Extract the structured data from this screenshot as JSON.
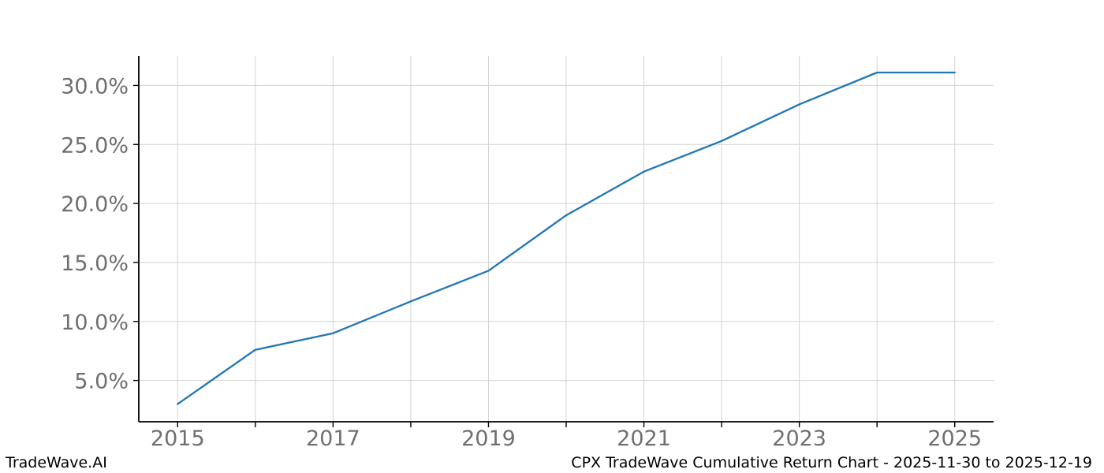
{
  "footer": {
    "left": "TradeWave.AI",
    "right": "CPX TradeWave Cumulative Return Chart - 2025-11-30 to 2025-12-19"
  },
  "chart_data": {
    "type": "line",
    "title": "",
    "xlabel": "",
    "ylabel": "",
    "x": [
      2015,
      2016,
      2017,
      2018,
      2019,
      2020,
      2021,
      2022,
      2023,
      2024,
      2025
    ],
    "series": [
      {
        "name": "CPX cumulative return",
        "values": [
          3.0,
          7.6,
          9.0,
          11.7,
          14.3,
          19.0,
          22.7,
          25.3,
          28.4,
          31.1,
          31.1
        ]
      }
    ],
    "xlim": [
      2014.5,
      2025.5
    ],
    "ylim": [
      1.5,
      32.5
    ],
    "x_tick_years": [
      2015,
      2016,
      2017,
      2018,
      2019,
      2020,
      2021,
      2022,
      2023,
      2024,
      2025
    ],
    "x_tick_labels": [
      "2015",
      "",
      "2017",
      "",
      "2019",
      "",
      "2021",
      "",
      "2023",
      "",
      "2025"
    ],
    "y_ticks": [
      {
        "value": 5,
        "label": "5.0%"
      },
      {
        "value": 10,
        "label": "10.0%"
      },
      {
        "value": 15,
        "label": "15.0%"
      },
      {
        "value": 20,
        "label": "20.0%"
      },
      {
        "value": 25,
        "label": "25.0%"
      },
      {
        "value": 30,
        "label": "30.0%"
      }
    ],
    "grid": true,
    "legend": false,
    "colors": {
      "line": "#1f77b4",
      "grid": "#d3d3d3",
      "axis": "#000000",
      "tick_label": "#6f6f6f",
      "background": "#ffffff"
    }
  }
}
